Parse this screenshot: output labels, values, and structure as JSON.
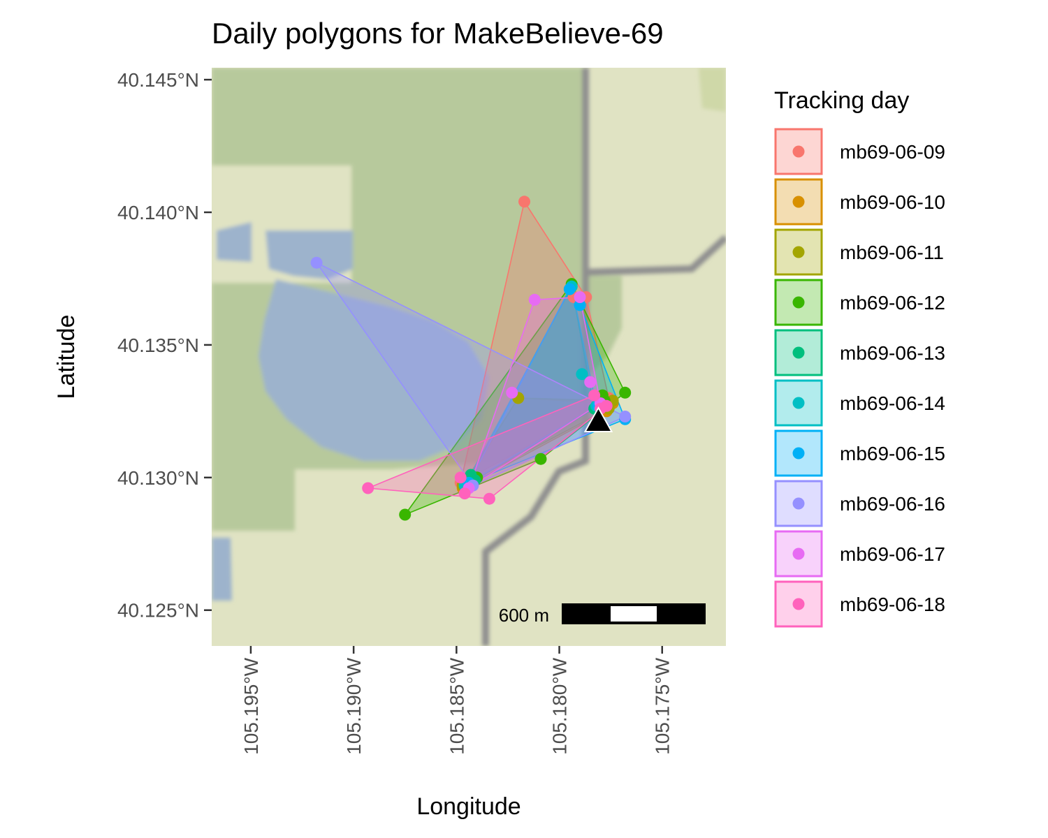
{
  "title": "Daily polygons for MakeBelieve-69",
  "chart_data": {
    "type": "scatter",
    "title": "Daily polygons for MakeBelieve-69",
    "xlabel": "Longitude",
    "ylabel": "Latitude",
    "xlim": [
      -105.1969,
      -105.1719
    ],
    "ylim": [
      40.12365,
      40.14545
    ],
    "x_ticks": [
      {
        "value": -105.195,
        "label": "105.195°W"
      },
      {
        "value": -105.19,
        "label": "105.190°W"
      },
      {
        "value": -105.185,
        "label": "105.185°W"
      },
      {
        "value": -105.18,
        "label": "105.180°W"
      },
      {
        "value": -105.175,
        "label": "105.175°W"
      }
    ],
    "y_ticks": [
      {
        "value": 40.125,
        "label": "40.125°N"
      },
      {
        "value": 40.13,
        "label": "40.130°N"
      },
      {
        "value": 40.135,
        "label": "40.135°N"
      },
      {
        "value": 40.14,
        "label": "40.140°N"
      },
      {
        "value": 40.145,
        "label": "40.145°N"
      }
    ],
    "legend_title": "Tracking day",
    "legend_position": "right",
    "grid": false,
    "basemap": "terrain",
    "scale_bar": {
      "label": "600 m",
      "position": "bottom-right"
    },
    "marker": {
      "shape": "triangle",
      "x": -105.1781,
      "y": 40.1321,
      "color": "#000000"
    },
    "series": [
      {
        "name": "mb69-06-09",
        "color": "#F8766D",
        "points": [
          {
            "x": -105.1817,
            "y": 40.1404
          },
          {
            "x": -105.1793,
            "y": 40.1368
          },
          {
            "x": -105.1787,
            "y": 40.1368
          },
          {
            "x": -105.1776,
            "y": 40.133
          },
          {
            "x": -105.178,
            "y": 40.1327
          },
          {
            "x": -105.1848,
            "y": 40.1298
          }
        ]
      },
      {
        "name": "mb69-06-10",
        "color": "#D89000",
        "points": [
          {
            "x": -105.182,
            "y": 40.133
          },
          {
            "x": -105.1774,
            "y": 40.1328
          },
          {
            "x": -105.1777,
            "y": 40.1325
          },
          {
            "x": -105.1847,
            "y": 40.1296
          },
          {
            "x": -105.1843,
            "y": 40.1299
          }
        ]
      },
      {
        "name": "mb69-06-11",
        "color": "#A3A500",
        "points": [
          {
            "x": -105.182,
            "y": 40.133
          },
          {
            "x": -105.1774,
            "y": 40.1329
          },
          {
            "x": -105.1776,
            "y": 40.1326
          },
          {
            "x": -105.1847,
            "y": 40.1297
          },
          {
            "x": -105.1845,
            "y": 40.1298
          }
        ]
      },
      {
        "name": "mb69-06-12",
        "color": "#39B600",
        "points": [
          {
            "x": -105.1794,
            "y": 40.1373
          },
          {
            "x": -105.1779,
            "y": 40.1331
          },
          {
            "x": -105.1768,
            "y": 40.1332
          },
          {
            "x": -105.1778,
            "y": 40.1329
          },
          {
            "x": -105.1809,
            "y": 40.1307
          },
          {
            "x": -105.1875,
            "y": 40.1286
          },
          {
            "x": -105.184,
            "y": 40.13
          }
        ]
      },
      {
        "name": "mb69-06-13",
        "color": "#00BF7D",
        "points": [
          {
            "x": -105.1794,
            "y": 40.1372
          },
          {
            "x": -105.1783,
            "y": 40.1326
          },
          {
            "x": -105.1843,
            "y": 40.1301
          },
          {
            "x": -105.1841,
            "y": 40.1299
          }
        ]
      },
      {
        "name": "mb69-06-14",
        "color": "#00BFC4",
        "points": [
          {
            "x": -105.1794,
            "y": 40.1372
          },
          {
            "x": -105.1789,
            "y": 40.1339
          },
          {
            "x": -105.1782,
            "y": 40.1327
          },
          {
            "x": -105.1846,
            "y": 40.1297
          }
        ]
      },
      {
        "name": "mb69-06-15",
        "color": "#00B0F6",
        "points": [
          {
            "x": -105.1795,
            "y": 40.1371
          },
          {
            "x": -105.179,
            "y": 40.1365
          },
          {
            "x": -105.1768,
            "y": 40.1322
          },
          {
            "x": -105.1781,
            "y": 40.1327
          },
          {
            "x": -105.1844,
            "y": 40.1298
          }
        ]
      },
      {
        "name": "mb69-06-16",
        "color": "#9590FF",
        "points": [
          {
            "x": -105.1918,
            "y": 40.1381
          },
          {
            "x": -105.1768,
            "y": 40.1323
          },
          {
            "x": -105.178,
            "y": 40.1326
          },
          {
            "x": -105.1842,
            "y": 40.1297
          }
        ]
      },
      {
        "name": "mb69-06-17",
        "color": "#E76BF3",
        "points": [
          {
            "x": -105.1812,
            "y": 40.1367
          },
          {
            "x": -105.179,
            "y": 40.1368
          },
          {
            "x": -105.1785,
            "y": 40.1336
          },
          {
            "x": -105.178,
            "y": 40.1328
          },
          {
            "x": -105.1823,
            "y": 40.1332
          },
          {
            "x": -105.1844,
            "y": 40.1296
          }
        ]
      },
      {
        "name": "mb69-06-18",
        "color": "#FF62BC",
        "points": [
          {
            "x": -105.1893,
            "y": 40.1296
          },
          {
            "x": -105.1848,
            "y": 40.13
          },
          {
            "x": -105.1783,
            "y": 40.1331
          },
          {
            "x": -105.1777,
            "y": 40.1327
          },
          {
            "x": -105.178,
            "y": 40.1326
          },
          {
            "x": -105.1834,
            "y": 40.1292
          },
          {
            "x": -105.1846,
            "y": 40.1294
          }
        ]
      }
    ]
  }
}
